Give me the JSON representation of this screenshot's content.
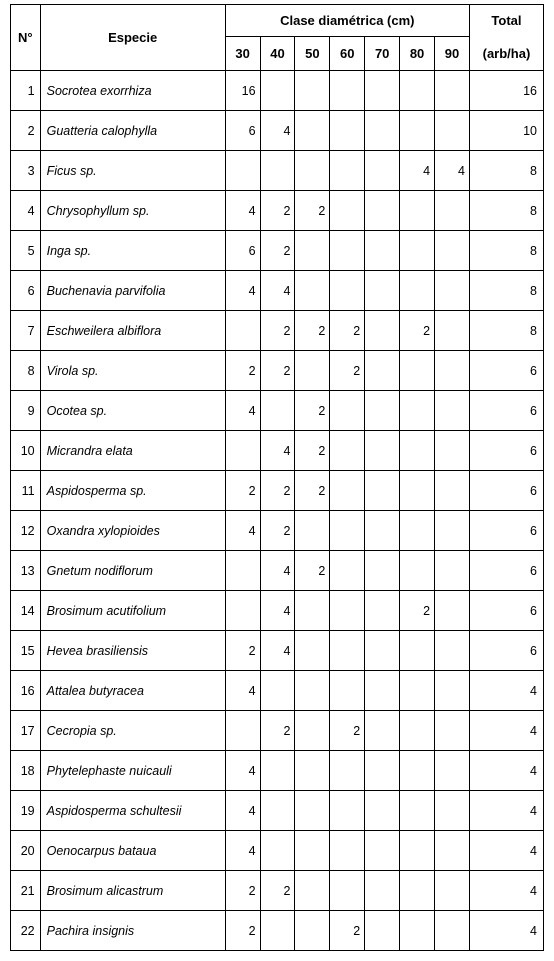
{
  "table": {
    "headers": {
      "n": "N°",
      "especie": "Especie",
      "clase": "Clase diamétrica (cm)",
      "total_line1": "Total",
      "total_line2": "(arb/ha)",
      "d30": "30",
      "d40": "40",
      "d50": "50",
      "d60": "60",
      "d70": "70",
      "d80": "80",
      "d90": "90"
    },
    "rows": [
      {
        "n": "1",
        "especie": "Socrotea exorrhiza",
        "v": [
          "16",
          "",
          "",
          "",
          "",
          "",
          ""
        ],
        "total": "16"
      },
      {
        "n": "2",
        "especie": "Guatteria calophylla",
        "v": [
          "6",
          "4",
          "",
          "",
          "",
          "",
          ""
        ],
        "total": "10"
      },
      {
        "n": "3",
        "especie": "Ficus sp.",
        "v": [
          "",
          "",
          "",
          "",
          "",
          "4",
          "4"
        ],
        "total": "8"
      },
      {
        "n": "4",
        "especie": "Chrysophyllum sp.",
        "v": [
          "4",
          "2",
          "2",
          "",
          "",
          "",
          ""
        ],
        "total": "8"
      },
      {
        "n": "5",
        "especie": "Inga sp.",
        "v": [
          "6",
          "2",
          "",
          "",
          "",
          "",
          ""
        ],
        "total": "8"
      },
      {
        "n": "6",
        "especie": "Buchenavia parvifolia",
        "v": [
          "4",
          "4",
          "",
          "",
          "",
          "",
          ""
        ],
        "total": "8"
      },
      {
        "n": "7",
        "especie": "Eschweilera albiflora",
        "v": [
          "",
          "2",
          "2",
          "2",
          "",
          "2",
          ""
        ],
        "total": "8"
      },
      {
        "n": "8",
        "especie": "Virola sp.",
        "v": [
          "2",
          "2",
          "",
          "2",
          "",
          "",
          ""
        ],
        "total": "6"
      },
      {
        "n": "9",
        "especie": "Ocotea sp.",
        "v": [
          "4",
          "",
          "2",
          "",
          "",
          "",
          ""
        ],
        "total": "6"
      },
      {
        "n": "10",
        "especie": "Micrandra elata",
        "v": [
          "",
          "4",
          "2",
          "",
          "",
          "",
          ""
        ],
        "total": "6"
      },
      {
        "n": "11",
        "especie": "Aspidosperma sp.",
        "v": [
          "2",
          "2",
          "2",
          "",
          "",
          "",
          ""
        ],
        "total": "6"
      },
      {
        "n": "12",
        "especie": "Oxandra xylopioides",
        "v": [
          "4",
          "2",
          "",
          "",
          "",
          "",
          ""
        ],
        "total": "6"
      },
      {
        "n": "13",
        "especie": "Gnetum nodiflorum",
        "v": [
          "",
          "4",
          "2",
          "",
          "",
          "",
          ""
        ],
        "total": "6"
      },
      {
        "n": "14",
        "especie": "Brosimum acutifolium",
        "v": [
          "",
          "4",
          "",
          "",
          "",
          "2",
          ""
        ],
        "total": "6"
      },
      {
        "n": "15",
        "especie": "Hevea brasiliensis",
        "v": [
          "2",
          "4",
          "",
          "",
          "",
          "",
          ""
        ],
        "total": "6"
      },
      {
        "n": "16",
        "especie": "Attalea butyracea",
        "v": [
          "4",
          "",
          "",
          "",
          "",
          "",
          ""
        ],
        "total": "4"
      },
      {
        "n": "17",
        "especie": "Cecropia sp.",
        "v": [
          "",
          "2",
          "",
          "2",
          "",
          "",
          ""
        ],
        "total": "4"
      },
      {
        "n": "18",
        "especie": "Phytelephaste nuicauli",
        "v": [
          "4",
          "",
          "",
          "",
          "",
          "",
          ""
        ],
        "total": "4"
      },
      {
        "n": "19",
        "especie": "Aspidosperma schultesii",
        "v": [
          "4",
          "",
          "",
          "",
          "",
          "",
          ""
        ],
        "total": "4"
      },
      {
        "n": "20",
        "especie": "Oenocarpus bataua",
        "v": [
          "4",
          "",
          "",
          "",
          "",
          "",
          ""
        ],
        "total": "4"
      },
      {
        "n": "21",
        "especie": "Brosimum alicastrum",
        "v": [
          "2",
          "2",
          "",
          "",
          "",
          "",
          ""
        ],
        "total": "4"
      },
      {
        "n": "22",
        "especie": "Pachira insignis",
        "v": [
          "2",
          "",
          "",
          "2",
          "",
          "",
          ""
        ],
        "total": "4"
      }
    ]
  }
}
